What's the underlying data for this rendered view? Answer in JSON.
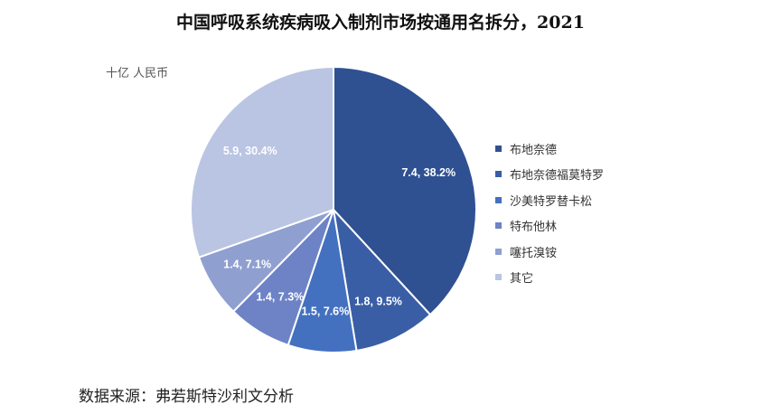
{
  "title": "中国呼吸系统疾病吸入制剂市场按通用名拆分，2021",
  "unit_label": "十亿  人民币",
  "source": "数据来源：弗若斯特沙利文分析",
  "chart_data": {
    "type": "pie",
    "title": "中国呼吸系统疾病吸入制剂市场按通用名拆分，2021",
    "unit": "十亿  人民币",
    "legend_position": "right",
    "slices": [
      {
        "name": "布地奈德",
        "value": 7.4,
        "percent": "38.2%",
        "label": "7.4, 38.2%",
        "color": "#2f5192"
      },
      {
        "name": "布地奈德福莫特罗",
        "value": 1.8,
        "percent": "9.5%",
        "label": "1.8, 9.5%",
        "color": "#3a5ea6"
      },
      {
        "name": "沙美特罗替卡松",
        "value": 1.5,
        "percent": "7.6%",
        "label": "1.5, 7.6%",
        "color": "#4470c0"
      },
      {
        "name": "特布他林",
        "value": 1.4,
        "percent": "7.3%",
        "label": "1.4, 7.3%",
        "color": "#6d83c6"
      },
      {
        "name": "噻托溴铵",
        "value": 1.4,
        "percent": "7.1%",
        "label": "1.4, 7.1%",
        "color": "#8f9fd0"
      },
      {
        "name": "其它",
        "value": 5.9,
        "percent": "30.4%",
        "label": "5.9, 30.4%",
        "color": "#bac5e3"
      }
    ]
  }
}
